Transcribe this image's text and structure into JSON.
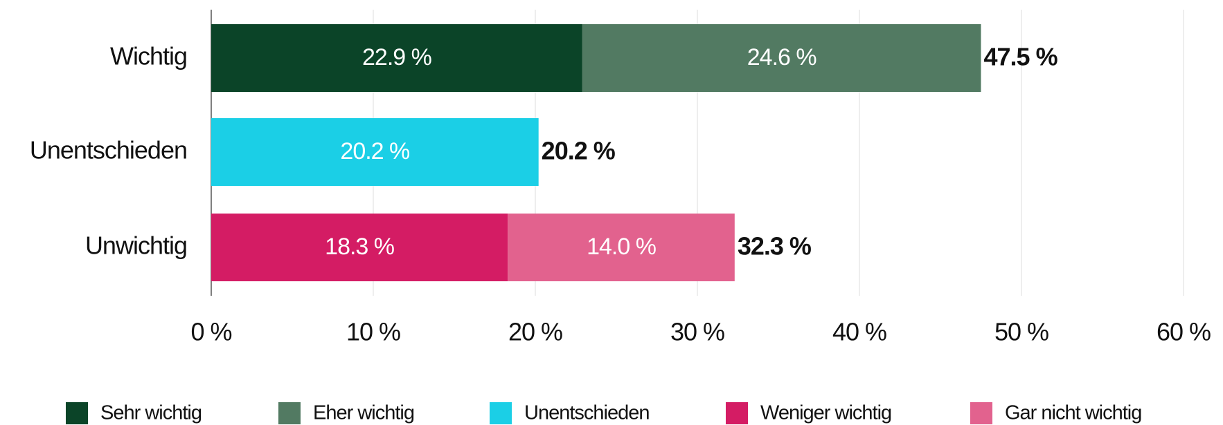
{
  "chart_data": {
    "type": "stacked-bar-horizontal",
    "categories": [
      "Wichtig",
      "Unentschieden",
      "Unwichtig"
    ],
    "series": [
      {
        "name": "Sehr wichtig",
        "color": "#0b4428",
        "values": [
          22.9,
          null,
          null
        ],
        "value_labels": [
          "22.9 %",
          null,
          null
        ]
      },
      {
        "name": "Eher wichtig",
        "color": "#527a62",
        "values": [
          24.6,
          null,
          null
        ],
        "value_labels": [
          "24.6 %",
          null,
          null
        ]
      },
      {
        "name": "Unentschieden",
        "color": "#1bcfe6",
        "values": [
          null,
          20.2,
          null
        ],
        "value_labels": [
          null,
          "20.2 %",
          null
        ]
      },
      {
        "name": "Weniger wichtig",
        "color": "#d41c64",
        "values": [
          null,
          null,
          18.3
        ],
        "value_labels": [
          null,
          null,
          "18.3 %"
        ]
      },
      {
        "name": "Gar nicht wichtig",
        "color": "#e2628e",
        "values": [
          null,
          null,
          14.0
        ],
        "value_labels": [
          null,
          null,
          "14.0 %"
        ]
      }
    ],
    "totals": [
      47.5,
      20.2,
      32.3
    ],
    "total_labels": [
      "47.5 %",
      "20.2 %",
      "32.3 %"
    ],
    "xlim": [
      0,
      60
    ],
    "xticks": [
      {
        "value": 0,
        "label": "0 %"
      },
      {
        "value": 10,
        "label": "10 %"
      },
      {
        "value": 20,
        "label": "20 %"
      },
      {
        "value": 30,
        "label": "30 %"
      },
      {
        "value": 40,
        "label": "40 %"
      },
      {
        "value": 50,
        "label": "50 %"
      },
      {
        "value": 60,
        "label": "60 %"
      }
    ],
    "grid": true,
    "legend": "bottom"
  }
}
